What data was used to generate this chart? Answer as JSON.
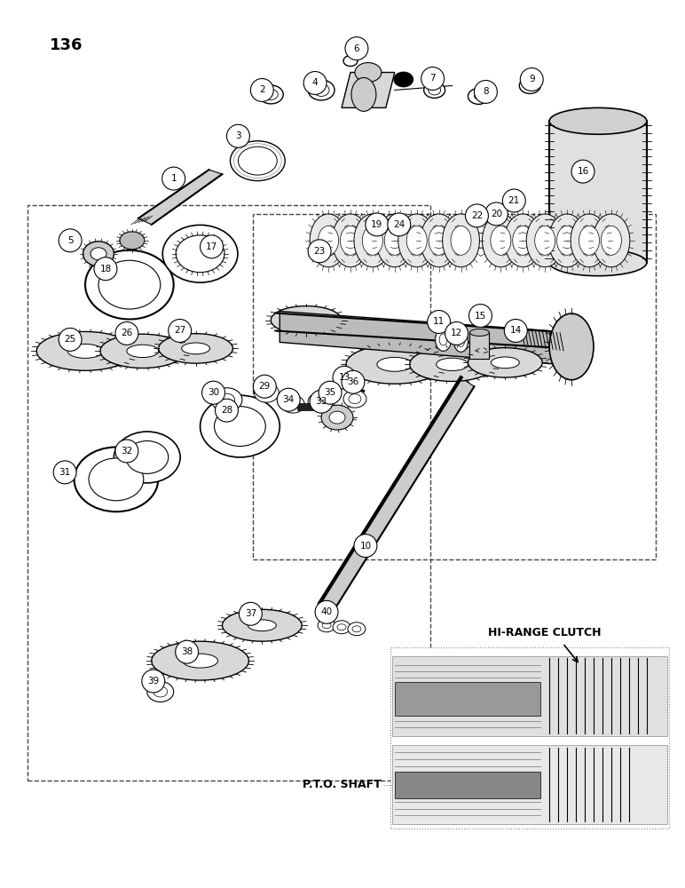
{
  "page_number": "136",
  "bg": "#ffffff",
  "lc": "#000000",
  "figsize": [
    7.72,
    10.0
  ],
  "dpi": 100,
  "hi_range_text": "HI-RANGE CLUTCH",
  "pto_text": "P.T.O. SHAFT"
}
